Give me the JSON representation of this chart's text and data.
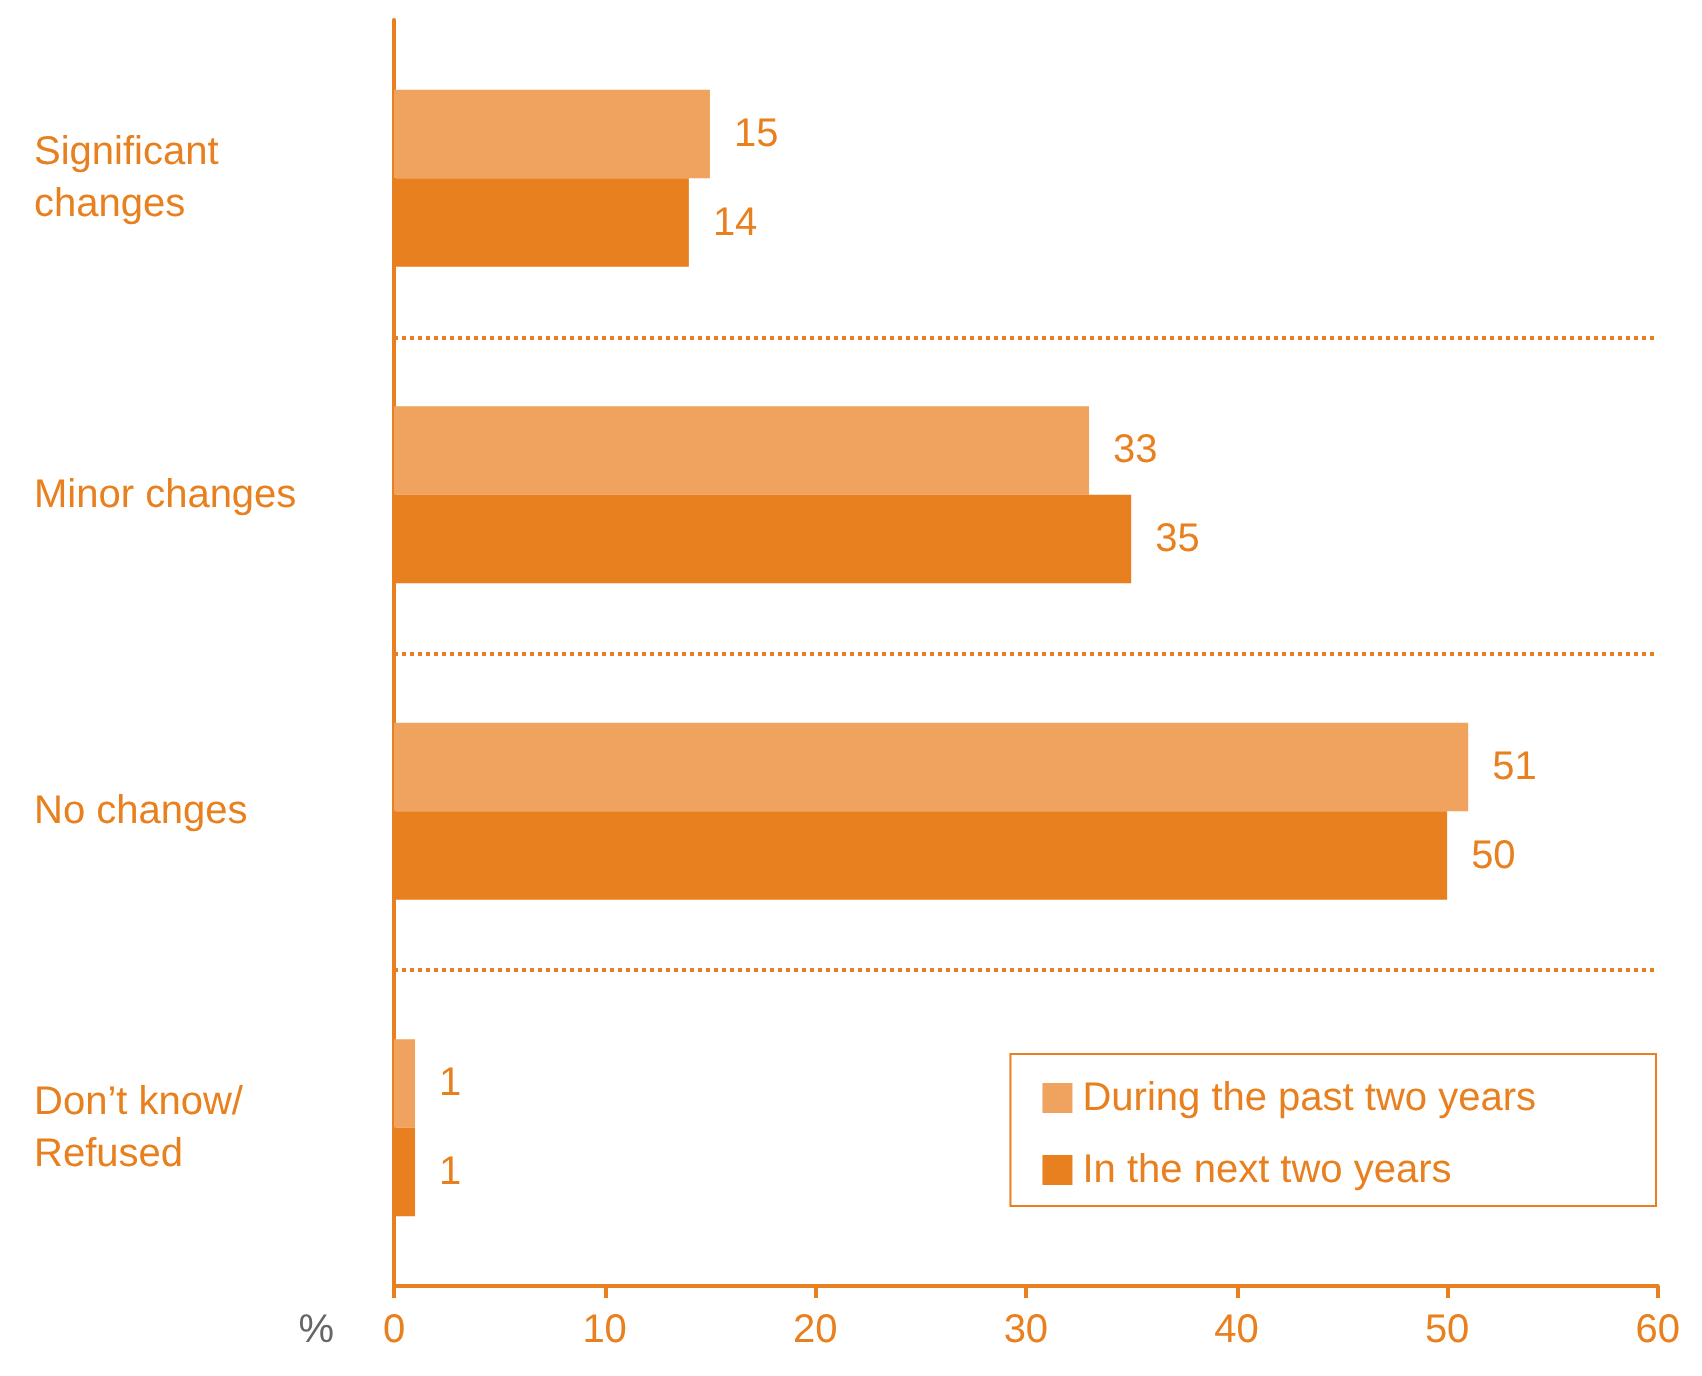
{
  "chart_data": {
    "type": "bar",
    "orientation": "horizontal",
    "categories": [
      "Significant changes",
      "Minor changes",
      "No changes",
      "Don’t know/Refused"
    ],
    "series": [
      {
        "name": "During the past two years",
        "color": "#f0a35e",
        "values": [
          15,
          33,
          51,
          1
        ]
      },
      {
        "name": "In the next two years",
        "color": "#e8801f",
        "values": [
          14,
          35,
          50,
          1
        ]
      }
    ],
    "xlabel": "%",
    "xlim": [
      0,
      60
    ],
    "xticks": [
      0,
      10,
      20,
      30,
      40,
      50,
      60
    ],
    "data_labels": true,
    "grid": "y",
    "legend": "bottom right"
  }
}
